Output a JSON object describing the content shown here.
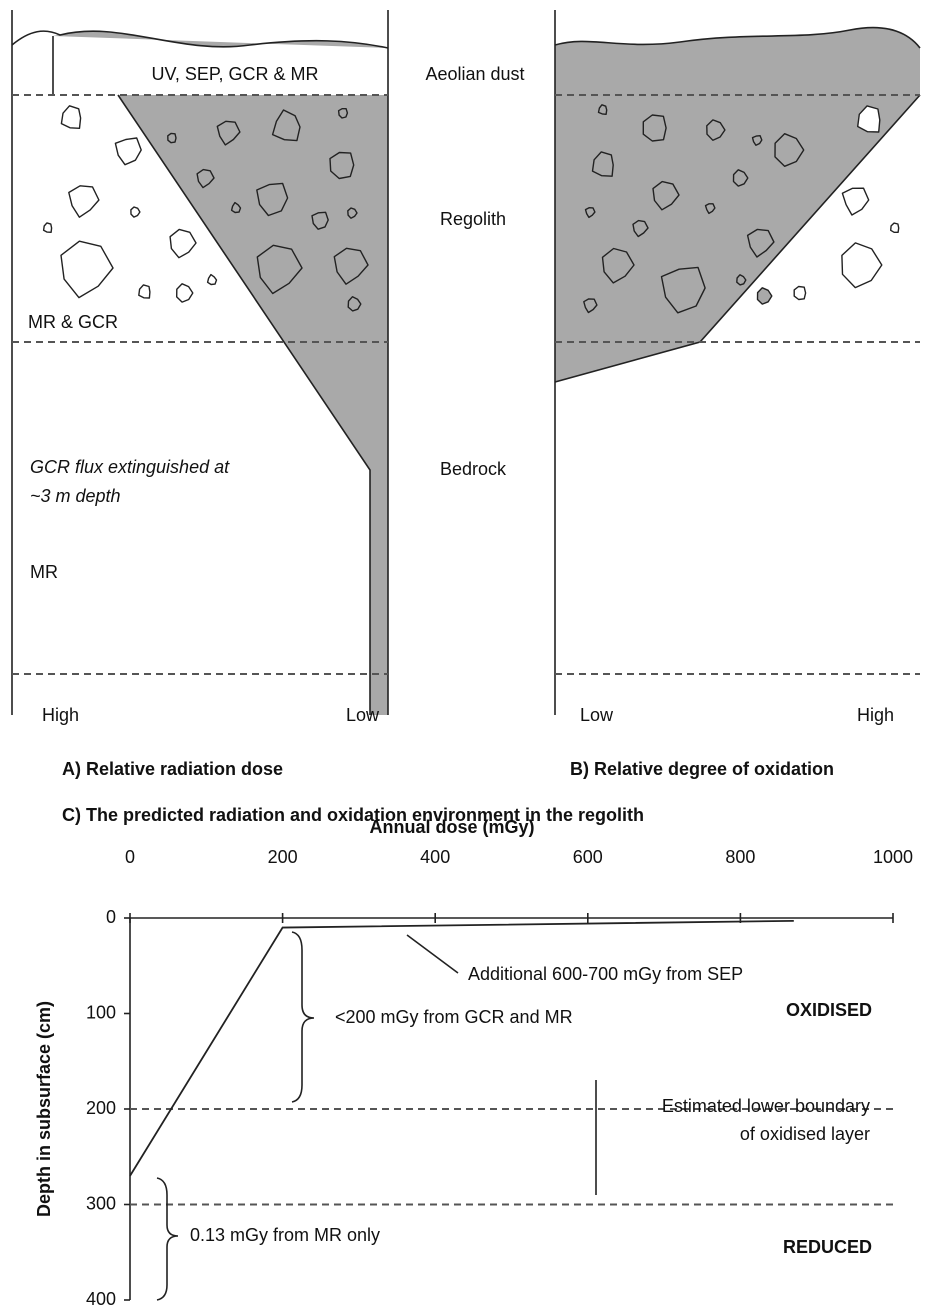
{
  "panel_a": {
    "top_label": "UV, SEP, GCR & MR",
    "mid_label": "MR & GCR",
    "note": [
      "GCR flux extinguished at",
      "~3 m depth"
    ],
    "bottom_label": "MR",
    "axis_left": "High",
    "axis_right": "Low",
    "caption": "A) Relative radiation dose"
  },
  "layers": [
    "Aeolian dust",
    "Regolith",
    "Bedrock"
  ],
  "panel_b": {
    "axis_left": "Low",
    "axis_right": "High",
    "caption": "B) Relative degree of oxidation"
  },
  "chart_data": {
    "type": "line",
    "title": "C) The predicted radiation and oxidation environment in the regolith",
    "xlabel": "Annual dose (mGy)",
    "ylabel": "Depth in subsurface (cm)",
    "xlim": [
      0,
      1000
    ],
    "xticks": [
      0,
      200,
      400,
      600,
      800,
      1000
    ],
    "ylim": [
      0,
      400
    ],
    "y_inverted": true,
    "yticks": [
      0,
      100,
      200,
      300,
      400
    ],
    "series": [
      {
        "color": "#222222",
        "x": [
          0,
          200,
          870
        ],
        "values": [
          270,
          10,
          3
        ]
      }
    ],
    "hlines": [
      200,
      300
    ],
    "annotations": [
      "Additional 600-700 mGy from SEP",
      "<200 mGy from GCR and MR",
      "OXIDISED",
      "Estimated lower boundary",
      "of oxidised layer",
      "0.13 mGy from MR only",
      "REDUCED"
    ]
  }
}
